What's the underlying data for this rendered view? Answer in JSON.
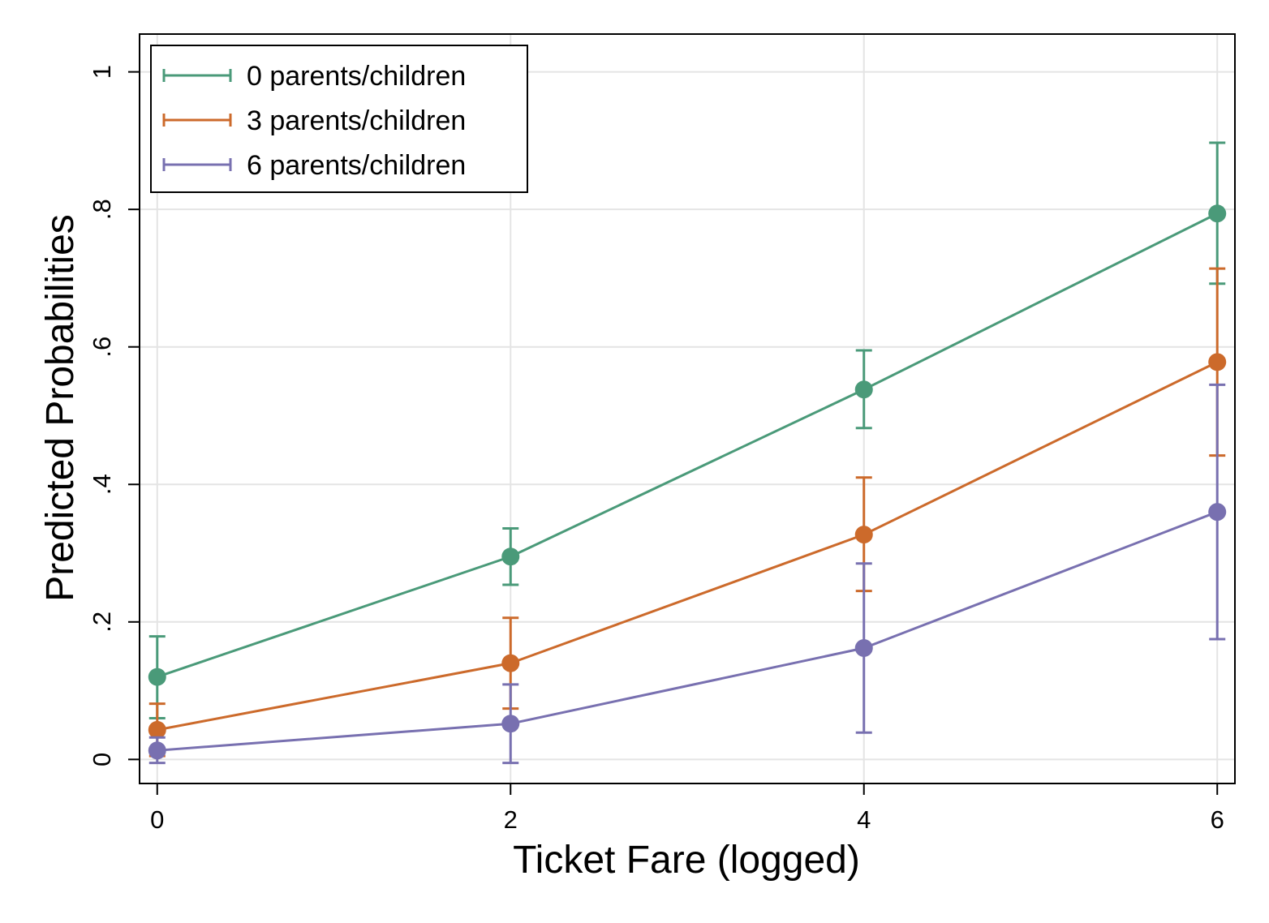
{
  "chart_data": {
    "type": "line",
    "xlabel": "Ticket Fare (logged)",
    "ylabel": "Predicted Probabilities",
    "x": [
      0,
      2,
      4,
      6
    ],
    "xlim": [
      -0.1,
      6.1
    ],
    "ylim": [
      -0.035,
      1.055
    ],
    "xticks": [
      0,
      2,
      4,
      6
    ],
    "xtick_labels": [
      "0",
      "2",
      "4",
      "6"
    ],
    "yticks": [
      0,
      0.2,
      0.4,
      0.6,
      0.8,
      1
    ],
    "ytick_labels": [
      "0",
      ".2",
      ".4",
      ".6",
      ".8",
      "1"
    ],
    "grid": true,
    "legend_position": "top-left",
    "error_bars": true,
    "series": [
      {
        "name": "0 parents/children",
        "color": "#4a9a79",
        "values": [
          0.12,
          0.295,
          0.538,
          0.794
        ],
        "ci_low": [
          0.06,
          0.254,
          0.482,
          0.692
        ],
        "ci_high": [
          0.179,
          0.336,
          0.595,
          0.897
        ]
      },
      {
        "name": "3 parents/children",
        "color": "#cc6a2b",
        "values": [
          0.043,
          0.14,
          0.327,
          0.578
        ],
        "ci_low": [
          0.005,
          0.074,
          0.245,
          0.442
        ],
        "ci_high": [
          0.081,
          0.206,
          0.41,
          0.714
        ]
      },
      {
        "name": "6 parents/children",
        "color": "#7870b0",
        "values": [
          0.013,
          0.052,
          0.162,
          0.36
        ],
        "ci_low": [
          -0.005,
          -0.005,
          0.039,
          0.175
        ],
        "ci_high": [
          0.032,
          0.109,
          0.285,
          0.545
        ]
      }
    ]
  }
}
